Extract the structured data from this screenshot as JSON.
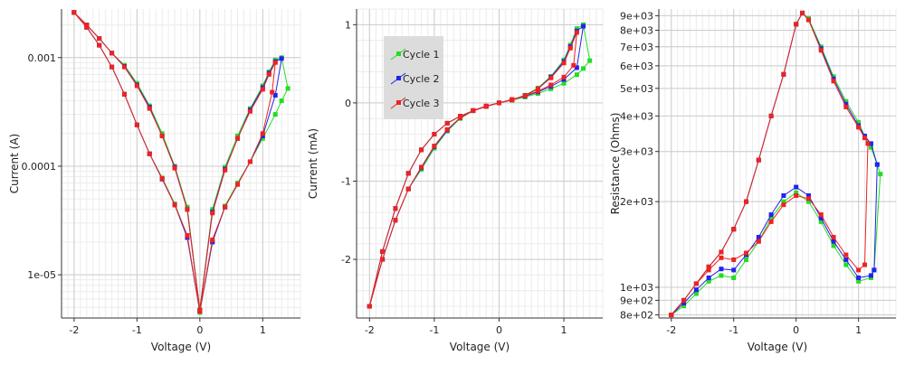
{
  "window": {
    "title": ""
  },
  "colors": {
    "cycle1": "#22dd22",
    "cycle2": "#2222ee",
    "cycle3": "#ee2222",
    "grid_major": "#cccccc",
    "grid_minor": "#ececec",
    "legend_bg": "#dcdcdc"
  },
  "chart_data": [
    {
      "type": "line",
      "title": "",
      "xlabel": "Voltage (V)",
      "ylabel": "Current (A)",
      "xlim": [
        -2.2,
        1.6
      ],
      "ylim": [
        4e-06,
        0.0028
      ],
      "yscale": "log",
      "grid": true,
      "xticks": [
        -2,
        -1,
        0,
        1
      ],
      "xtick_labels": [
        "-2",
        "-1",
        "0",
        "1"
      ],
      "yticks": [
        1e-05,
        0.0001,
        0.001
      ],
      "ytick_labels": [
        "1e-05",
        "0.0001",
        "0.001"
      ],
      "series": [
        {
          "name": "Cycle 1",
          "x": [
            -2.0,
            -1.8,
            -1.6,
            -1.4,
            -1.2,
            -1.0,
            -0.8,
            -0.6,
            -0.4,
            -0.2,
            0.0,
            0.2,
            0.4,
            0.6,
            0.8,
            1.0,
            1.1,
            1.2,
            1.3,
            1.4,
            1.3,
            1.2,
            1.0,
            0.8,
            0.6,
            0.4,
            0.2,
            0.0,
            -0.2,
            -0.4,
            -0.6,
            -0.8,
            -1.0,
            -1.2,
            -1.4,
            -1.6,
            -1.8,
            -2.0
          ],
          "y": [
            0.0026,
            0.002,
            0.0015,
            0.0011,
            0.00085,
            0.00058,
            0.00036,
            0.0002,
            0.0001,
            4.2e-05,
            4.8e-06,
            4e-05,
            9.8e-05,
            0.00019,
            0.00034,
            0.00055,
            0.00074,
            0.00095,
            0.001,
            0.00052,
            0.0004,
            0.0003,
            0.00018,
            0.00011,
            7e-05,
            4.3e-05,
            2e-05,
            4.5e-06,
            2.3e-05,
            4.5e-05,
            7.8e-05,
            0.00013,
            0.00024,
            0.00046,
            0.00082,
            0.0013,
            0.0019,
            0.0026
          ]
        },
        {
          "name": "Cycle 2",
          "x": [
            -2.0,
            -1.8,
            -1.6,
            -1.4,
            -1.2,
            -1.0,
            -0.8,
            -0.6,
            -0.4,
            -0.2,
            0.0,
            0.2,
            0.4,
            0.6,
            0.8,
            1.0,
            1.1,
            1.2,
            1.3,
            1.2,
            1.0,
            0.8,
            0.6,
            0.4,
            0.2,
            0.0,
            -0.2,
            -0.4,
            -0.6,
            -0.8,
            -1.0,
            -1.2,
            -1.4,
            -1.6,
            -1.8,
            -2.0
          ],
          "y": [
            0.0026,
            0.002,
            0.0015,
            0.0011,
            0.00083,
            0.00056,
            0.00035,
            0.00019,
            9.8e-05,
            4e-05,
            4.7e-06,
            3.8e-05,
            9.4e-05,
            0.00018,
            0.00033,
            0.00053,
            0.00072,
            0.00092,
            0.00098,
            0.00045,
            0.00019,
            0.00011,
            6.8e-05,
            4.2e-05,
            2e-05,
            4.6e-06,
            2.2e-05,
            4.4e-05,
            7.6e-05,
            0.00013,
            0.00024,
            0.00046,
            0.00082,
            0.0013,
            0.0019,
            0.0026
          ]
        },
        {
          "name": "Cycle 3",
          "x": [
            -2.0,
            -1.8,
            -1.6,
            -1.4,
            -1.2,
            -1.0,
            -0.8,
            -0.6,
            -0.4,
            -0.2,
            0.0,
            0.2,
            0.4,
            0.6,
            0.8,
            1.0,
            1.1,
            1.2,
            1.15,
            1.0,
            0.8,
            0.6,
            0.4,
            0.2,
            0.0,
            -0.2,
            -0.4,
            -0.6,
            -0.8,
            -1.0,
            -1.2,
            -1.4,
            -1.6,
            -1.8,
            -2.0
          ],
          "y": [
            0.0026,
            0.002,
            0.0015,
            0.0011,
            0.00082,
            0.00055,
            0.00034,
            0.00019,
            9.6e-05,
            4e-05,
            4.7e-06,
            3.7e-05,
            9.2e-05,
            0.00018,
            0.00032,
            0.00051,
            0.0007,
            0.0009,
            0.00048,
            0.0002,
            0.00011,
            6.8e-05,
            4.2e-05,
            2.1e-05,
            4.6e-06,
            2.3e-05,
            4.4e-05,
            7.7e-05,
            0.00013,
            0.00024,
            0.00046,
            0.00082,
            0.0013,
            0.0019,
            0.0026
          ]
        }
      ]
    },
    {
      "type": "line",
      "title": "",
      "xlabel": "Voltage (V)",
      "ylabel": "Current (mA)",
      "xlim": [
        -2.2,
        1.6
      ],
      "ylim": [
        -2.75,
        1.2
      ],
      "grid": true,
      "xticks": [
        -2,
        -1,
        0,
        1
      ],
      "xtick_labels": [
        "-2",
        "-1",
        "0",
        "1"
      ],
      "yticks": [
        -2,
        -1,
        0,
        1
      ],
      "ytick_labels": [
        "-2",
        "-1",
        "0",
        "1"
      ],
      "legend": {
        "position": "top-left",
        "entries": [
          "Cycle 1",
          "Cycle 2",
          "Cycle 3"
        ]
      },
      "series": [
        {
          "name": "Cycle 1",
          "x": [
            -2.0,
            -1.8,
            -1.6,
            -1.4,
            -1.2,
            -1.0,
            -0.8,
            -0.6,
            -0.4,
            -0.2,
            0.0,
            0.2,
            0.4,
            0.6,
            0.8,
            1.0,
            1.1,
            1.2,
            1.3,
            1.4,
            1.3,
            1.2,
            1.0,
            0.8,
            0.6,
            0.4,
            0.2,
            0.0,
            -0.2,
            -0.4,
            -0.6,
            -0.8,
            -1.0,
            -1.2,
            -1.4,
            -1.6,
            -1.8,
            -2.0
          ],
          "y": [
            -2.6,
            -2.0,
            -1.5,
            -1.1,
            -0.85,
            -0.58,
            -0.36,
            -0.2,
            -0.1,
            -0.042,
            0.0,
            0.04,
            0.098,
            0.19,
            0.34,
            0.55,
            0.74,
            0.95,
            1.0,
            0.54,
            0.44,
            0.36,
            0.25,
            0.18,
            0.12,
            0.075,
            0.035,
            0.0,
            -0.045,
            -0.1,
            -0.17,
            -0.26,
            -0.4,
            -0.6,
            -0.9,
            -1.35,
            -1.9,
            -2.6
          ]
        },
        {
          "name": "Cycle 2",
          "x": [
            -2.0,
            -1.8,
            -1.6,
            -1.4,
            -1.2,
            -1.0,
            -0.8,
            -0.6,
            -0.4,
            -0.2,
            0.0,
            0.2,
            0.4,
            0.6,
            0.8,
            1.0,
            1.1,
            1.2,
            1.3,
            1.2,
            1.0,
            0.8,
            0.6,
            0.4,
            0.2,
            0.0,
            -0.2,
            -0.4,
            -0.6,
            -0.8,
            -1.0,
            -1.2,
            -1.4,
            -1.6,
            -1.8,
            -2.0
          ],
          "y": [
            -2.6,
            -2.0,
            -1.5,
            -1.1,
            -0.83,
            -0.56,
            -0.35,
            -0.19,
            -0.098,
            -0.04,
            0.0,
            0.038,
            0.094,
            0.18,
            0.33,
            0.53,
            0.72,
            0.92,
            0.98,
            0.45,
            0.3,
            0.21,
            0.14,
            0.085,
            0.04,
            0.0,
            -0.045,
            -0.1,
            -0.17,
            -0.26,
            -0.4,
            -0.6,
            -0.9,
            -1.35,
            -1.9,
            -2.6
          ]
        },
        {
          "name": "Cycle 3",
          "x": [
            -2.0,
            -1.8,
            -1.6,
            -1.4,
            -1.2,
            -1.0,
            -0.8,
            -0.6,
            -0.4,
            -0.2,
            0.0,
            0.2,
            0.4,
            0.6,
            0.8,
            1.0,
            1.1,
            1.2,
            1.15,
            1.0,
            0.8,
            0.6,
            0.4,
            0.2,
            0.0,
            -0.2,
            -0.4,
            -0.6,
            -0.8,
            -1.0,
            -1.2,
            -1.4,
            -1.6,
            -1.8,
            -2.0
          ],
          "y": [
            -2.6,
            -2.0,
            -1.5,
            -1.1,
            -0.82,
            -0.55,
            -0.34,
            -0.19,
            -0.096,
            -0.04,
            0.0,
            0.037,
            0.092,
            0.18,
            0.32,
            0.51,
            0.7,
            0.9,
            0.48,
            0.33,
            0.23,
            0.15,
            0.09,
            0.045,
            0.0,
            -0.046,
            -0.1,
            -0.17,
            -0.26,
            -0.4,
            -0.6,
            -0.9,
            -1.35,
            -1.9,
            -2.6
          ]
        }
      ]
    },
    {
      "type": "line",
      "title": "",
      "xlabel": "Voltage (V)",
      "ylabel": "Resistance (Ohms)",
      "xlim": [
        -2.2,
        1.6
      ],
      "ylim": [
        780,
        9500
      ],
      "yscale": "log",
      "grid": true,
      "xticks": [
        -2,
        -1,
        0,
        1
      ],
      "xtick_labels": [
        "-2",
        "-1",
        "0",
        "1"
      ],
      "yticks": [
        800,
        900,
        1000,
        2000,
        3000,
        4000,
        5000,
        6000,
        7000,
        8000,
        9000
      ],
      "ytick_labels": [
        "8e+02",
        "9e+02",
        "1e+03",
        "2e+03",
        "3e+03",
        "4e+03",
        "5e+03",
        "6e+03",
        "7e+03",
        "8e+03",
        "9e+03"
      ],
      "series": [
        {
          "name": "Cycle 1",
          "x": [
            -2.0,
            -1.8,
            -1.6,
            -1.4,
            -1.2,
            -1.0,
            -0.8,
            -0.6,
            -0.4,
            -0.2,
            0.0,
            0.1,
            0.2,
            0.4,
            0.6,
            0.8,
            1.0,
            1.1,
            1.2,
            1.3,
            1.35,
            1.25,
            1.2,
            1.0,
            0.8,
            0.6,
            0.4,
            0.2,
            0.0,
            -0.2,
            -0.4,
            -0.6,
            -0.8,
            -1.0,
            -1.2,
            -1.4,
            -1.6,
            -1.8,
            -2.0
          ],
          "y": [
            800,
            900,
            1030,
            1180,
            1330,
            1600,
            2000,
            2800,
            4000,
            5600,
            8400,
            9200,
            8800,
            7000,
            5500,
            4500,
            3800,
            3400,
            3100,
            2700,
            2500,
            1150,
            1080,
            1050,
            1200,
            1400,
            1700,
            2000,
            2150,
            2000,
            1750,
            1450,
            1250,
            1080,
            1100,
            1050,
            950,
            860,
            800
          ]
        },
        {
          "name": "Cycle 2",
          "x": [
            -2.0,
            -1.8,
            -1.6,
            -1.4,
            -1.2,
            -1.0,
            -0.8,
            -0.6,
            -0.4,
            -0.2,
            0.0,
            0.1,
            0.2,
            0.4,
            0.6,
            0.8,
            1.0,
            1.1,
            1.2,
            1.3,
            1.25,
            1.2,
            1.0,
            0.8,
            0.6,
            0.4,
            0.2,
            0.0,
            -0.2,
            -0.4,
            -0.6,
            -0.8,
            -1.0,
            -1.2,
            -1.4,
            -1.6,
            -1.8,
            -2.0
          ],
          "y": [
            800,
            900,
            1030,
            1180,
            1330,
            1600,
            2000,
            2800,
            4000,
            5600,
            8400,
            9200,
            8700,
            6900,
            5400,
            4400,
            3700,
            3400,
            3200,
            2700,
            1150,
            1100,
            1080,
            1250,
            1450,
            1750,
            2100,
            2250,
            2100,
            1800,
            1500,
            1300,
            1150,
            1160,
            1080,
            980,
            880,
            800
          ]
        },
        {
          "name": "Cycle 3",
          "x": [
            -2.0,
            -1.8,
            -1.6,
            -1.4,
            -1.2,
            -1.0,
            -0.8,
            -0.6,
            -0.4,
            -0.2,
            0.0,
            0.1,
            0.2,
            0.4,
            0.6,
            0.8,
            1.0,
            1.1,
            1.15,
            1.1,
            1.0,
            0.8,
            0.6,
            0.4,
            0.2,
            0.0,
            -0.2,
            -0.4,
            -0.6,
            -0.8,
            -1.0,
            -1.2,
            -1.4,
            -1.6,
            -1.8,
            -2.0
          ],
          "y": [
            800,
            900,
            1030,
            1180,
            1330,
            1600,
            2000,
            2800,
            4000,
            5600,
            8400,
            9200,
            8700,
            6800,
            5300,
            4300,
            3650,
            3350,
            3200,
            1200,
            1150,
            1300,
            1500,
            1800,
            2050,
            2100,
            1950,
            1700,
            1450,
            1320,
            1250,
            1270,
            1150,
            1030,
            900,
            800
          ]
        }
      ]
    }
  ]
}
